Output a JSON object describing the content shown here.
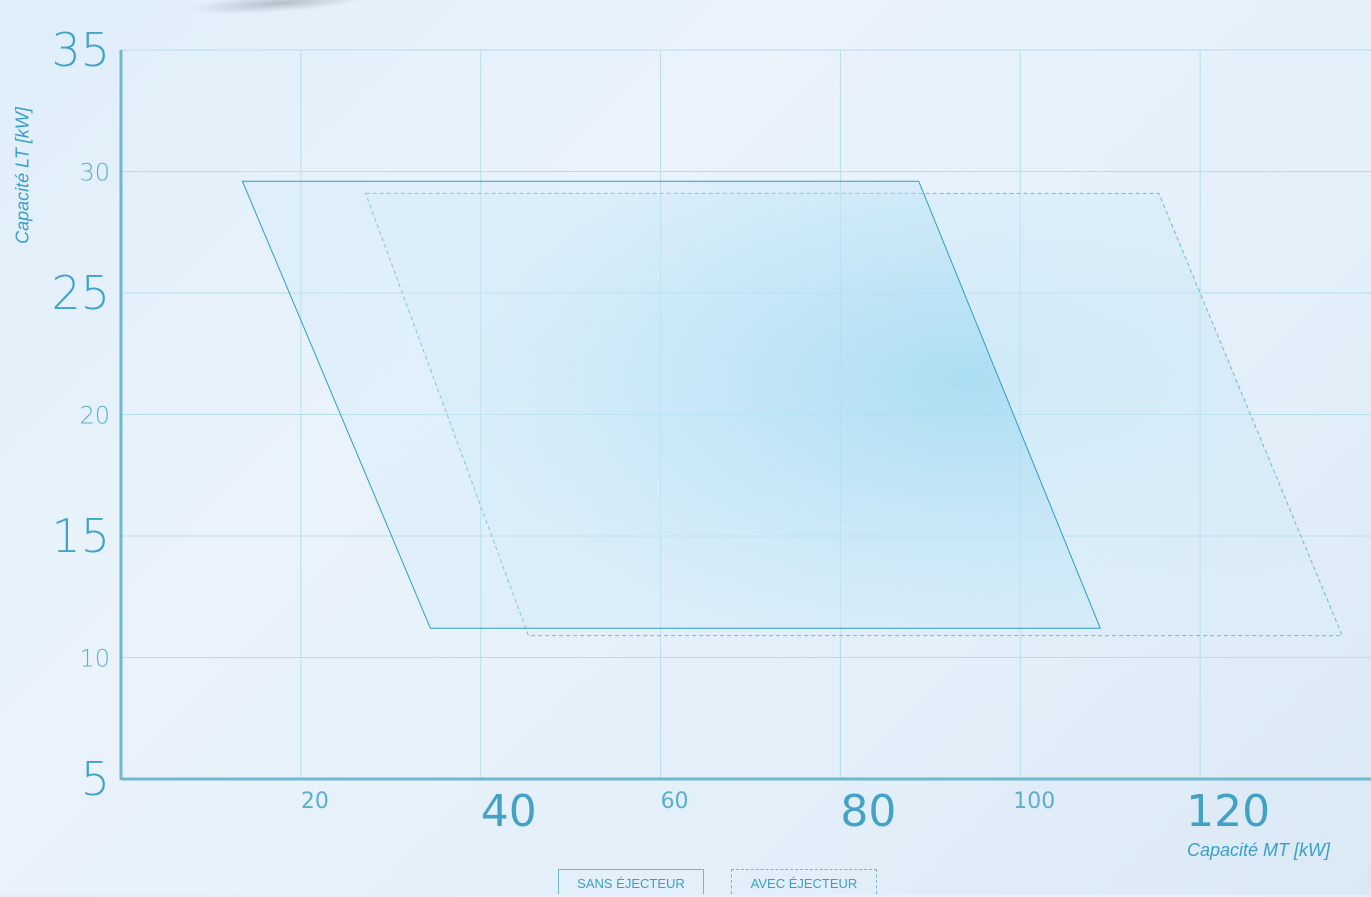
{
  "chart_data": {
    "type": "area",
    "xlabel": "Capacité MT [kW]",
    "ylabel": "Capacité LT [kW]",
    "xlim": [
      0,
      140
    ],
    "ylim": [
      5,
      35
    ],
    "xticks": [
      20,
      40,
      60,
      80,
      100,
      120
    ],
    "yticks": [
      5,
      10,
      15,
      20,
      25,
      30,
      35
    ],
    "grid": true,
    "legend_placement": "bottom-center",
    "series": [
      {
        "name": "SANS ÉJECTEUR",
        "style": "solid",
        "color": "#2f9fbf",
        "x": [
          13.5,
          88.7,
          108.9,
          34.4
        ],
        "y": [
          29.6,
          29.6,
          11.2,
          11.2
        ]
      },
      {
        "name": "AVEC ÉJECTEUR",
        "style": "dashed",
        "color": "#6fb8cf",
        "x": [
          27.2,
          115.4,
          135.8,
          45.3
        ],
        "y": [
          29.1,
          29.1,
          10.9,
          10.9
        ]
      }
    ]
  },
  "legend": {
    "sans": "SANS ÉJECTEUR",
    "avec": "AVEC ÉJECTEUR"
  }
}
